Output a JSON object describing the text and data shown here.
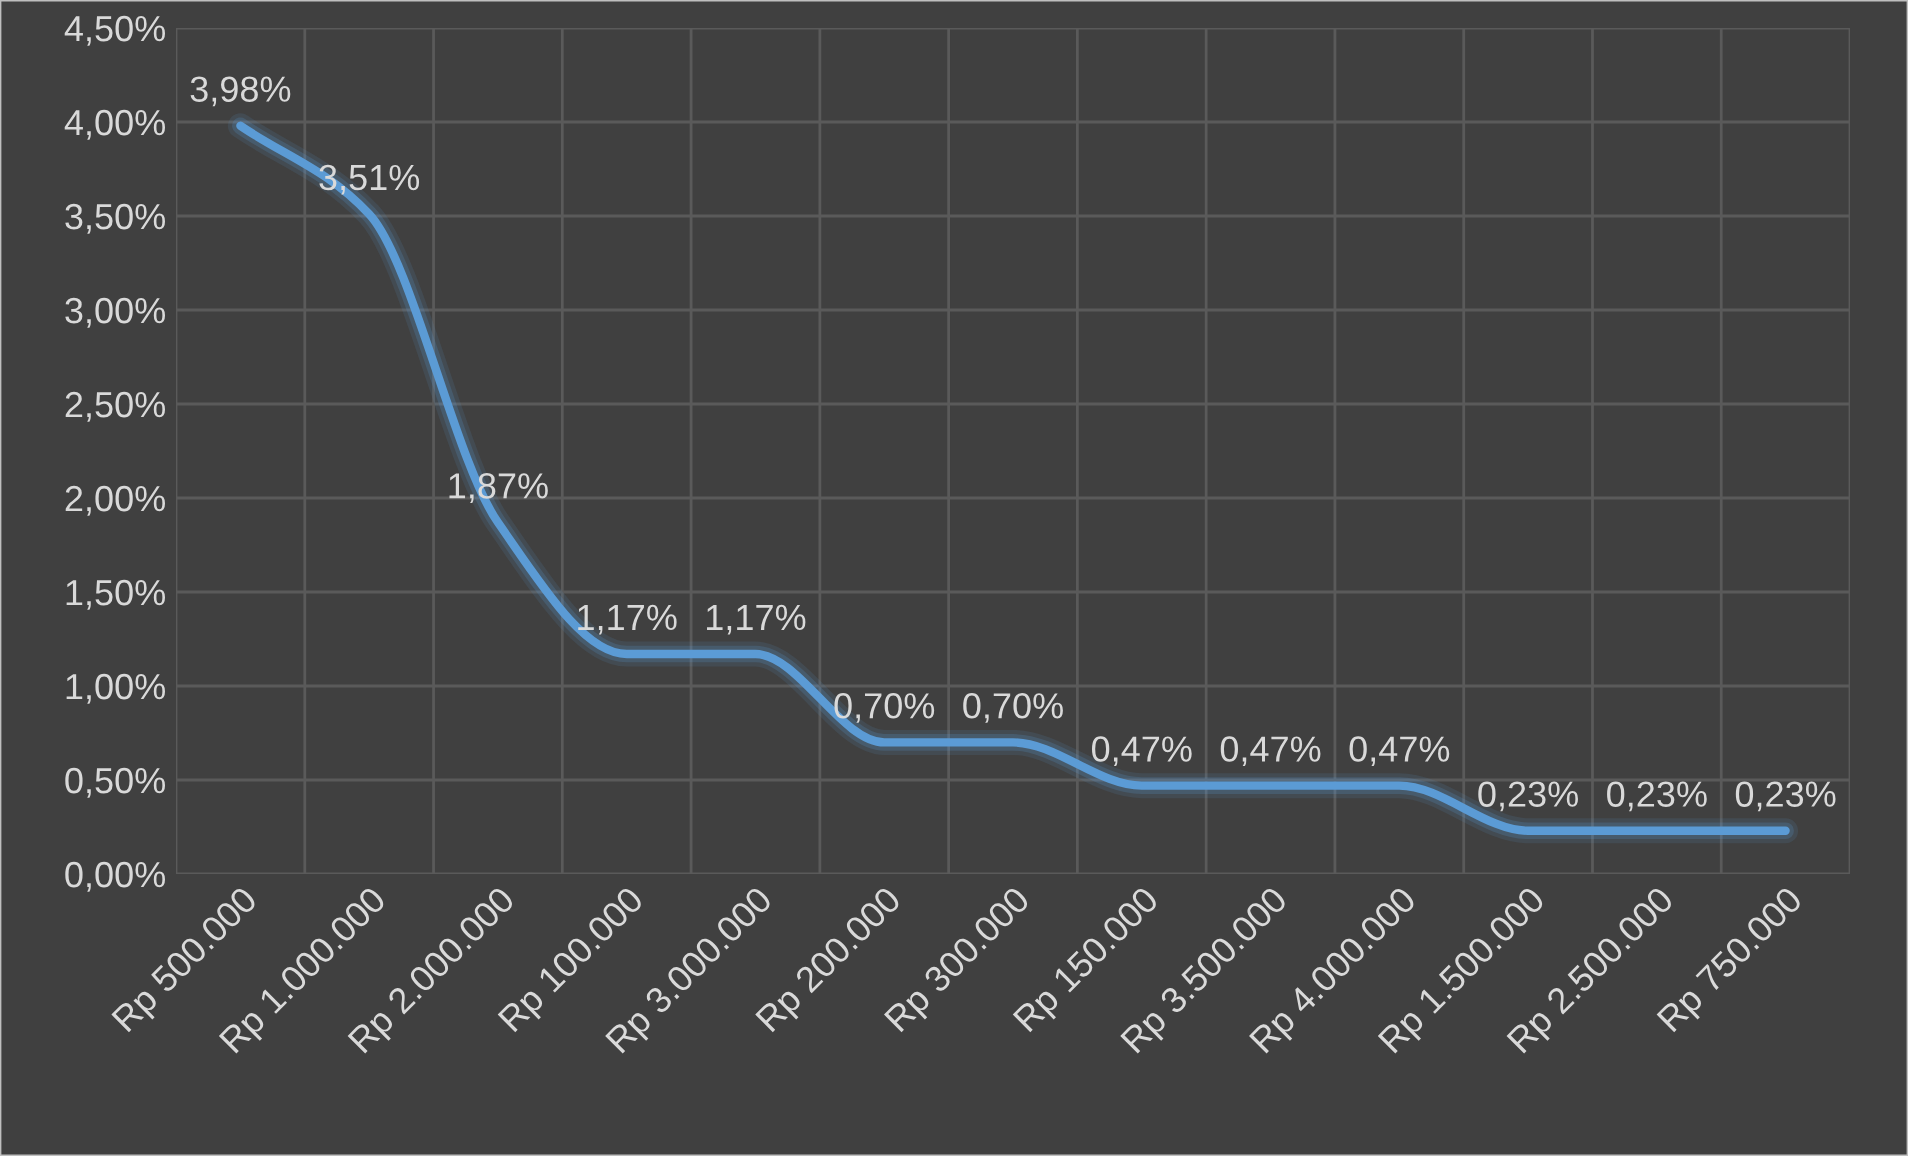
{
  "chart_data": {
    "type": "line",
    "categories": [
      "Rp 500.000",
      "Rp 1.000.000",
      "Rp 2.000.000",
      "Rp 100.000",
      "Rp 3.000.000",
      "Rp 200.000",
      "Rp 300.000",
      "Rp 150.000",
      "Rp 3.500.000",
      "Rp 4.000.000",
      "Rp 1.500.000",
      "Rp 2.500.000",
      "Rp 750.000"
    ],
    "series": [
      {
        "color": "#5b9bd5",
        "values": [
          3.98,
          3.51,
          1.87,
          1.17,
          1.17,
          0.7,
          0.7,
          0.47,
          0.47,
          0.47,
          0.23,
          0.23,
          0.23
        ],
        "value_labels": [
          "3,98%",
          "3,51%",
          "1,87%",
          "1,17%",
          "1,17%",
          "0,70%",
          "0,70%",
          "0,47%",
          "0,47%",
          "0,47%",
          "0,23%",
          "0,23%",
          "0,23%"
        ]
      }
    ],
    "ylim": [
      0,
      4.5
    ],
    "yticks": [
      {
        "value": 0,
        "label": "0,00%"
      },
      {
        "value": 0.5,
        "label": "0,50%"
      },
      {
        "value": 1,
        "label": "1,00%"
      },
      {
        "value": 1.5,
        "label": "1,50%"
      },
      {
        "value": 2,
        "label": "2,00%"
      },
      {
        "value": 2.5,
        "label": "2,50%"
      },
      {
        "value": 3,
        "label": "3,00%"
      },
      {
        "value": 3.5,
        "label": "3,50%"
      },
      {
        "value": 4,
        "label": "4,00%"
      },
      {
        "value": 4.5,
        "label": "4,50%"
      }
    ],
    "grid": true,
    "marker": "none",
    "line_style": "solid"
  }
}
